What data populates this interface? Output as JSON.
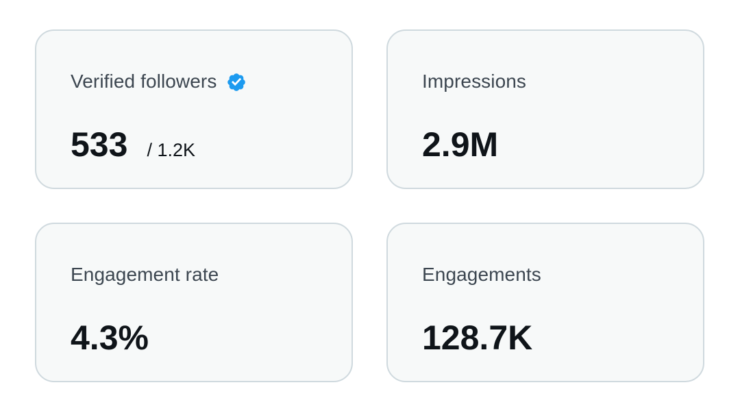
{
  "stats": {
    "verified_followers": {
      "label": "Verified followers",
      "value": "533",
      "total": "/ 1.2K",
      "icon": "verified-badge-icon",
      "icon_color": "#1d9bf0"
    },
    "impressions": {
      "label": "Impressions",
      "value": "2.9M"
    },
    "engagement_rate": {
      "label": "Engagement rate",
      "value": "4.3%"
    },
    "engagements": {
      "label": "Engagements",
      "value": "128.7K"
    }
  },
  "colors": {
    "card_background": "#f7f9f9",
    "card_border": "#cfd9de",
    "label_text": "#3c4650",
    "value_text": "#0f1419"
  }
}
